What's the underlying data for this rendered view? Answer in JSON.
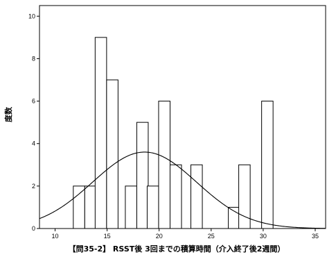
{
  "chart_data": {
    "type": "bar",
    "xlabel": "【問35-2】 RSST後  3回までの積算時間（介入終了後2週間）",
    "ylabel": "度数",
    "xlim": [
      8.5,
      36
    ],
    "ylim": [
      0,
      10.5
    ],
    "x_ticks": [
      10,
      15,
      20,
      25,
      30,
      35
    ],
    "y_ticks": [
      0,
      2,
      4,
      6,
      8,
      10
    ],
    "grid": false,
    "bar_width": 1.1,
    "bars": [
      {
        "x": 12.3,
        "value": 2
      },
      {
        "x": 13.4,
        "value": 2
      },
      {
        "x": 14.4,
        "value": 9
      },
      {
        "x": 15.5,
        "value": 7
      },
      {
        "x": 17.3,
        "value": 2
      },
      {
        "x": 18.4,
        "value": 5
      },
      {
        "x": 19.4,
        "value": 2
      },
      {
        "x": 20.5,
        "value": 6
      },
      {
        "x": 21.6,
        "value": 3
      },
      {
        "x": 23.6,
        "value": 3
      },
      {
        "x": 27.2,
        "value": 1
      },
      {
        "x": 28.2,
        "value": 3
      },
      {
        "x": 30.4,
        "value": 6
      }
    ],
    "normal_curve": {
      "mean": 18.6,
      "sd": 5.0,
      "peak": 3.6
    }
  }
}
